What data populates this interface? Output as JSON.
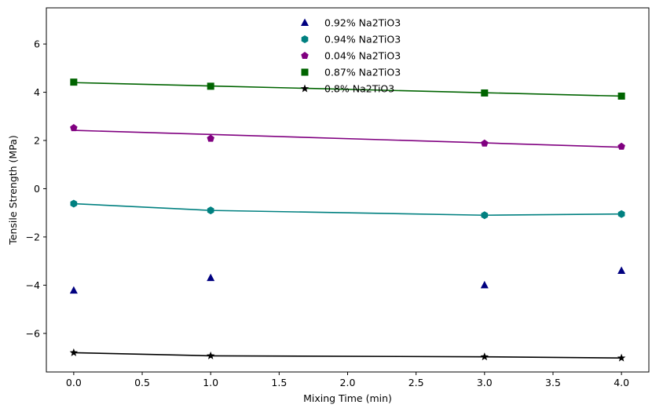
{
  "chart_data": {
    "type": "scatter",
    "title": "",
    "xlabel": "Mixing Time (min)",
    "ylabel": "Tensile Strength (MPa)",
    "xlim": [
      -0.2,
      4.2
    ],
    "ylim": [
      -7.6,
      7.5
    ],
    "xticks": [
      "0.0",
      "0.5",
      "1.0",
      "1.5",
      "2.0",
      "2.5",
      "3.0",
      "3.5",
      "4.0"
    ],
    "yticks": [
      "−6",
      "−4",
      "−2",
      "0",
      "2",
      "4",
      "6"
    ],
    "grid": false,
    "legend_position": "top-center",
    "x": [
      0,
      1,
      3,
      4
    ],
    "series": [
      {
        "name": "0.92% Na2TiO3",
        "marker": "triangle",
        "color": "#000080",
        "values": [
          -4.22,
          -3.7,
          -4.0,
          -3.4
        ],
        "fit_line": null
      },
      {
        "name": "0.94% Na2TiO3",
        "marker": "hexagon",
        "color": "#008080",
        "values": [
          -0.62,
          -0.9,
          -1.1,
          -1.05
        ],
        "fit_line": [
          -0.62,
          -0.9,
          -1.1,
          -1.05
        ]
      },
      {
        "name": "0.04% Na2TiO3",
        "marker": "pentagon",
        "color": "#800080",
        "values": [
          2.52,
          2.08,
          1.88,
          1.75
        ],
        "fit_line": [
          2.42,
          2.25,
          1.9,
          1.72
        ]
      },
      {
        "name": "0.87% Na2TiO3",
        "marker": "square",
        "color": "#006400",
        "values": [
          4.42,
          4.25,
          3.97,
          3.84
        ],
        "fit_line": [
          4.4,
          4.26,
          3.98,
          3.84
        ]
      },
      {
        "name": "0.8% Na2TiO3",
        "marker": "star",
        "color": "#000000",
        "values": [
          -6.8,
          -6.93,
          -6.97,
          -7.02
        ],
        "fit_line": [
          -6.8,
          -6.93,
          -6.97,
          -7.02
        ]
      }
    ]
  }
}
